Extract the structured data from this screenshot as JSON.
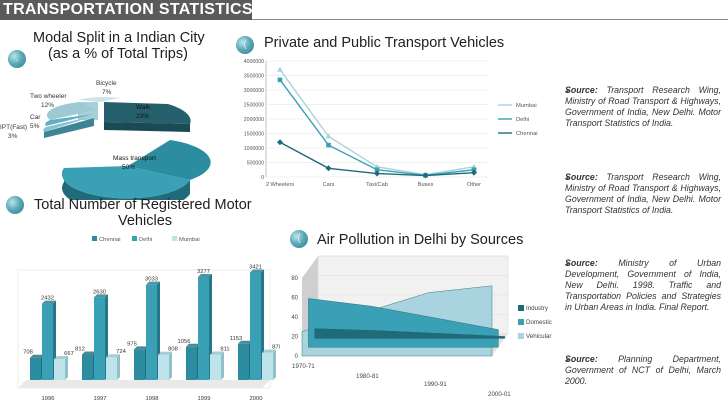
{
  "header": {
    "title": "TRANSPORTATION STATISTICS"
  },
  "sections": {
    "modal": {
      "title_line1": "Modal Split in a Indian City",
      "title_line2": "(as a % of Total Trips)",
      "bullet": "."
    },
    "vehicles": {
      "title": "Private and Public Transport Vehicles",
      "bullet": "("
    },
    "registered": {
      "title_line1": "Total Number of Registered Motor",
      "title_line2": "Vehicles"
    },
    "pollution": {
      "title": "Air Pollution in Delhi by Sources",
      "bullet": "("
    }
  },
  "colors": {
    "teal": "#3aa0b5",
    "dark_teal": "#1f6b79",
    "light_teal": "#bfe3ea",
    "grey": "#d8d8d8",
    "header": "#5b5b5b"
  },
  "pie": {
    "labels": [
      {
        "name": "Bicycle",
        "value": "7%"
      },
      {
        "name": "Two wheeler",
        "value": "12%"
      },
      {
        "name": "Car",
        "value": "5%"
      },
      {
        "name": "IPT(Fast)",
        "value": "3%"
      },
      {
        "name": "Walk",
        "value": "23%"
      },
      {
        "name": "Mass transport",
        "value": "50%"
      }
    ]
  },
  "sources": [
    {
      "label": "Source:",
      "text": "Transport Research Wing, Ministry of Road Transport & Highways, Government of India, New Delhi. Motor Transport Statistics of India."
    },
    {
      "label": "Source:",
      "text": "Transport Research Wing, Ministry of Road Transport & Highways, Government of India, New Delhi. Motor Transport Statistics of India."
    },
    {
      "label": "Source:",
      "text": "Ministry of Urban Development, Government of India, New Delhi. 1998. Traffic and Transportation Policies and Strategies in Urban Areas in India. Final Report."
    },
    {
      "label": "Source:",
      "text": "Planning Department, Government of NCT of Delhi, March 2000."
    }
  ],
  "chart_data": [
    {
      "type": "line",
      "title": "Private and Public Transport Vehicles",
      "categories": [
        "2 Wheelers",
        "Cars",
        "Taxi/Cab",
        "Buses",
        "Other"
      ],
      "ylim": [
        0,
        4000000
      ],
      "yticks": [
        "4000000",
        "3500000",
        "3000000",
        "2500000",
        "2000000",
        "1500000",
        "1000000",
        "500000",
        "0"
      ],
      "series": [
        {
          "name": "Mumbai",
          "values": [
            3700000,
            1400000,
            350000,
            80000,
            350000
          ]
        },
        {
          "name": "Delhi",
          "values": [
            3350000,
            1100000,
            250000,
            60000,
            250000
          ]
        },
        {
          "name": "Chennai",
          "values": [
            1200000,
            300000,
            120000,
            50000,
            150000
          ]
        }
      ]
    },
    {
      "type": "bar",
      "title": "Total Number of Registered Motor Vehicles",
      "categories": [
        "1996",
        "1997",
        "1998",
        "1999",
        "2000"
      ],
      "ylim": [
        0,
        3500
      ],
      "legend": [
        "Chennai",
        "Delhi",
        "Mumbai"
      ],
      "series": [
        {
          "name": "Chennai",
          "values": [
            708,
            812,
            975,
            1056,
            1153
          ]
        },
        {
          "name": "Delhi",
          "values": [
            2432,
            2630,
            3033,
            3277,
            3421
          ]
        },
        {
          "name": "Mumbai",
          "values": [
            667,
            724,
            808,
            811,
            870
          ]
        }
      ],
      "data_labels": [
        [
          "708",
          "2432",
          "667"
        ],
        [
          "812",
          "2630",
          "724"
        ],
        [
          "975",
          "3033",
          "808"
        ],
        [
          "1056",
          "3277",
          "811"
        ],
        [
          "1153",
          "3421",
          "870"
        ]
      ]
    },
    {
      "type": "area",
      "title": "Air Pollution in Delhi by Sources",
      "categories": [
        "1970-71",
        "1980-81",
        "1990-91",
        "2000-01"
      ],
      "ylim": [
        0,
        80
      ],
      "yticks": [
        "80",
        "60",
        "40",
        "20",
        "0"
      ],
      "series": [
        {
          "name": "Industry",
          "values": [
            10,
            8,
            5,
            2
          ]
        },
        {
          "name": "Domestic",
          "values": [
            50,
            42,
            30,
            18
          ]
        },
        {
          "name": "Vehicular",
          "values": [
            25,
            45,
            65,
            72
          ]
        }
      ]
    }
  ]
}
